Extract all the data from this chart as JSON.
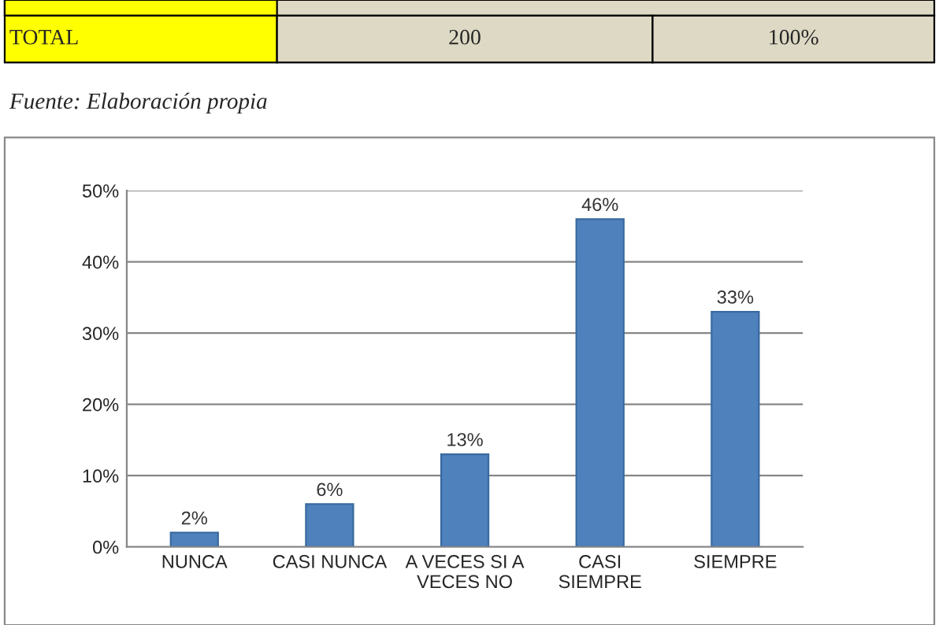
{
  "chart_data": {
    "type": "bar",
    "categories": [
      "NUNCA",
      "CASI NUNCA",
      "A VECES SI A\nVECES NO",
      "CASI\nSIEMPRE",
      "SIEMPRE"
    ],
    "values": [
      2,
      6,
      13,
      46,
      33
    ],
    "color": "#4f81bd",
    "value_labels": [
      "2%",
      "6%",
      "13%",
      "46%",
      "33%"
    ],
    "ylim": [
      0,
      50
    ],
    "yticks": [
      {
        "value": 0,
        "label": "0%"
      },
      {
        "value": 10,
        "label": "10%"
      },
      {
        "value": 20,
        "label": "20%"
      },
      {
        "value": 30,
        "label": "30%"
      },
      {
        "value": 40,
        "label": "40%"
      },
      {
        "value": 50,
        "label": "50%"
      }
    ],
    "grid": "y",
    "annotations": [
      "TOTAL",
      "200",
      "100%",
      "Fuente: Elaboración propia"
    ]
  }
}
